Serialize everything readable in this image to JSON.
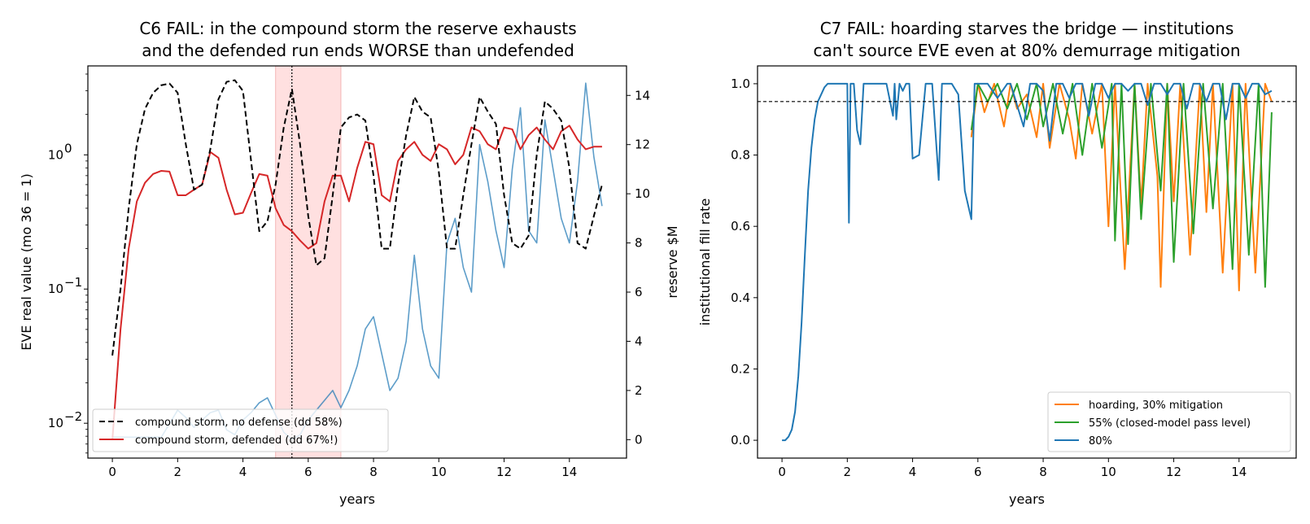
{
  "chart_data": [
    {
      "type": "line",
      "title_line1": "C6 FAIL: in the compound storm the reserve exhausts",
      "title_line2": "and the defended run ends WORSE than undefended",
      "xlabel": "years",
      "ylabel": "EVE real value (mo 36 = 1)",
      "y2label": "reserve $M",
      "y2label_color": "#1f77b4",
      "yscale": "log",
      "xlim": [
        -0.75,
        15.75
      ],
      "ylim": [
        0.0055,
        4.6
      ],
      "y2lim": [
        -0.75,
        15.2
      ],
      "x_ticks": [
        "0",
        "2",
        "4",
        "6",
        "8",
        "10",
        "12",
        "14"
      ],
      "y_ticks": [
        "10^-2",
        "10^-1",
        "10^0"
      ],
      "y2_ticks": [
        "0",
        "2",
        "4",
        "6",
        "8",
        "10",
        "12",
        "14"
      ],
      "shaded_span": {
        "x": [
          5,
          7
        ],
        "color": "#ffe0e0"
      },
      "vertical_line": {
        "x": 5.5,
        "style": "dotted"
      },
      "legend_position": "lower-left",
      "series": [
        {
          "name": "compound storm, no defense (dd 58%)",
          "color": "#000000",
          "style": "dashed",
          "x": [
            0,
            0.25,
            0.5,
            0.75,
            1.0,
            1.25,
            1.5,
            1.75,
            2.0,
            2.25,
            2.5,
            2.75,
            3.0,
            3.25,
            3.5,
            3.75,
            4.0,
            4.25,
            4.5,
            4.75,
            5.0,
            5.25,
            5.5,
            5.75,
            6.0,
            6.25,
            6.5,
            6.75,
            7.0,
            7.25,
            7.5,
            7.75,
            8.0,
            8.25,
            8.5,
            8.75,
            9.0,
            9.25,
            9.5,
            9.75,
            10.0,
            10.25,
            10.5,
            10.75,
            11.0,
            11.25,
            11.5,
            11.75,
            12.0,
            12.25,
            12.5,
            12.75,
            13.0,
            13.25,
            13.5,
            13.75,
            14.0,
            14.25,
            14.5,
            14.75,
            15.0
          ],
          "y": [
            0.032,
            0.1,
            0.4,
            1.2,
            2.2,
            2.9,
            3.3,
            3.4,
            2.9,
            1.2,
            0.55,
            0.6,
            1.1,
            2.6,
            3.5,
            3.6,
            3.0,
            0.9,
            0.27,
            0.32,
            0.6,
            1.6,
            3.1,
            1.2,
            0.35,
            0.15,
            0.17,
            0.5,
            1.6,
            1.9,
            2.0,
            1.8,
            0.7,
            0.2,
            0.2,
            0.6,
            1.4,
            2.7,
            2.1,
            1.9,
            0.75,
            0.2,
            0.2,
            0.5,
            1.2,
            2.7,
            2.1,
            1.7,
            0.5,
            0.22,
            0.2,
            0.25,
            1.0,
            2.5,
            2.2,
            1.8,
            0.8,
            0.22,
            0.2,
            0.35,
            0.6
          ]
        },
        {
          "name": "compound storm, defended (dd 67%!)",
          "color": "#d62728",
          "style": "solid",
          "x": [
            0,
            0.25,
            0.5,
            0.75,
            1.0,
            1.25,
            1.5,
            1.75,
            2.0,
            2.25,
            2.5,
            2.75,
            3.0,
            3.25,
            3.5,
            3.75,
            4.0,
            4.25,
            4.5,
            4.75,
            5.0,
            5.25,
            5.5,
            5.75,
            6.0,
            6.25,
            6.5,
            6.75,
            7.0,
            7.25,
            7.5,
            7.75,
            8.0,
            8.25,
            8.5,
            8.75,
            9.0,
            9.25,
            9.5,
            9.75,
            10.0,
            10.25,
            10.5,
            10.75,
            11.0,
            11.25,
            11.5,
            11.75,
            12.0,
            12.25,
            12.5,
            12.75,
            13.0,
            13.25,
            13.5,
            13.75,
            14.0,
            14.25,
            14.5,
            14.75,
            15.0
          ],
          "y": [
            0.0075,
            0.05,
            0.2,
            0.45,
            0.62,
            0.72,
            0.76,
            0.75,
            0.5,
            0.5,
            0.55,
            0.6,
            1.05,
            0.95,
            0.55,
            0.36,
            0.37,
            0.52,
            0.72,
            0.7,
            0.4,
            0.3,
            0.27,
            0.23,
            0.2,
            0.22,
            0.45,
            0.7,
            0.7,
            0.45,
            0.8,
            1.25,
            1.2,
            0.5,
            0.45,
            0.9,
            1.1,
            1.25,
            1.0,
            0.9,
            1.2,
            1.1,
            0.85,
            1.0,
            1.6,
            1.5,
            1.2,
            1.1,
            1.6,
            1.55,
            1.1,
            1.4,
            1.6,
            1.3,
            1.1,
            1.5,
            1.65,
            1.3,
            1.1,
            1.15,
            1.15
          ]
        },
        {
          "name": "reserve",
          "axis": "right",
          "color": "#1f77b4",
          "style": "solid",
          "x": [
            0,
            0.5,
            1.0,
            1.5,
            2.0,
            2.25,
            2.5,
            2.75,
            3.0,
            3.25,
            3.5,
            3.75,
            4.0,
            4.25,
            4.5,
            4.75,
            5.0,
            5.25,
            5.5,
            5.75,
            6.0,
            6.25,
            6.5,
            6.75,
            7.0,
            7.25,
            7.5,
            7.75,
            8.0,
            8.25,
            8.5,
            8.75,
            9.0,
            9.25,
            9.5,
            9.75,
            10.0,
            10.25,
            10.5,
            10.75,
            11.0,
            11.25,
            11.5,
            11.75,
            12.0,
            12.25,
            12.5,
            12.75,
            13.0,
            13.25,
            13.5,
            13.75,
            14.0,
            14.25,
            14.5,
            14.75,
            15.0
          ],
          "y": [
            0.1,
            0.1,
            0.1,
            0.1,
            1.2,
            0.9,
            0.5,
            0.8,
            1.1,
            1.2,
            0.4,
            0.2,
            0.8,
            1.1,
            1.5,
            1.7,
            1.0,
            0.3,
            0.0,
            0.2,
            0.8,
            1.2,
            1.6,
            2.0,
            1.3,
            2.0,
            3.0,
            4.5,
            5.0,
            3.5,
            2.0,
            2.5,
            4.0,
            7.5,
            4.5,
            3.0,
            2.5,
            8.0,
            9.0,
            7.0,
            6.0,
            12.0,
            10.5,
            8.5,
            7.0,
            11.0,
            13.5,
            8.5,
            8.0,
            13.0,
            11.0,
            9.0,
            8.0,
            10.5,
            14.5,
            11.5,
            9.5
          ]
        }
      ]
    },
    {
      "type": "line",
      "title_line1": "C7 FAIL: hoarding starves the bridge — institutions",
      "title_line2": "can't source EVE even at 80% demurrage mitigation",
      "xlabel": "years",
      "ylabel": "institutional fill rate",
      "xlim": [
        -0.75,
        15.75
      ],
      "ylim": [
        -0.05,
        1.05
      ],
      "x_ticks": [
        "0",
        "2",
        "4",
        "6",
        "8",
        "10",
        "12",
        "14"
      ],
      "y_ticks": [
        "0.0",
        "0.2",
        "0.4",
        "0.6",
        "0.8",
        "1.0"
      ],
      "reference_line": {
        "y": 0.95,
        "style": "dashed"
      },
      "legend_position": "lower-right",
      "series": [
        {
          "name": "hoarding, 30% mitigation",
          "color": "#ff7f0e",
          "style": "solid",
          "x": [
            5.8,
            6.0,
            6.2,
            6.5,
            6.8,
            7.0,
            7.2,
            7.5,
            7.8,
            8.0,
            8.2,
            8.5,
            8.8,
            9.0,
            9.2,
            9.5,
            9.8,
            10.0,
            10.2,
            10.5,
            10.8,
            11.0,
            11.2,
            11.5,
            11.6,
            11.8,
            12.0,
            12.2,
            12.5,
            12.8,
            13.0,
            13.2,
            13.5,
            13.8,
            14.0,
            14.2,
            14.5,
            14.8,
            15.0
          ],
          "y": [
            0.85,
            1.0,
            0.92,
            1.0,
            0.88,
            1.0,
            0.93,
            0.97,
            0.85,
            1.0,
            0.82,
            1.0,
            0.9,
            0.79,
            1.0,
            0.86,
            1.0,
            0.6,
            1.0,
            0.48,
            1.0,
            0.66,
            1.0,
            0.74,
            0.43,
            1.0,
            0.67,
            1.0,
            0.52,
            1.0,
            0.64,
            1.0,
            0.47,
            1.0,
            0.42,
            1.0,
            0.47,
            1.0,
            0.95
          ]
        },
        {
          "name": "55% (closed-model pass level)",
          "color": "#2ca02c",
          "style": "solid",
          "x": [
            5.8,
            6.0,
            6.3,
            6.6,
            6.9,
            7.2,
            7.5,
            7.8,
            8.0,
            8.3,
            8.6,
            8.9,
            9.2,
            9.5,
            9.8,
            10.1,
            10.2,
            10.4,
            10.6,
            10.8,
            11.0,
            11.3,
            11.6,
            11.8,
            12.0,
            12.3,
            12.6,
            12.9,
            13.2,
            13.5,
            13.8,
            14.0,
            14.3,
            14.6,
            14.8,
            15.0
          ],
          "y": [
            0.87,
            1.0,
            0.95,
            1.0,
            0.93,
            1.0,
            0.9,
            1.0,
            0.88,
            1.0,
            0.86,
            1.0,
            0.8,
            1.0,
            0.82,
            1.0,
            0.56,
            1.0,
            0.55,
            1.0,
            0.62,
            1.0,
            0.7,
            1.0,
            0.5,
            1.0,
            0.58,
            1.0,
            0.65,
            1.0,
            0.48,
            1.0,
            0.52,
            1.0,
            0.43,
            0.92
          ]
        },
        {
          "name": "80%",
          "color": "#1f77b4",
          "style": "solid",
          "x": [
            0,
            0.1,
            0.2,
            0.3,
            0.4,
            0.5,
            0.6,
            0.7,
            0.8,
            0.9,
            1.0,
            1.1,
            1.2,
            1.3,
            1.4,
            1.5,
            1.6,
            1.8,
            2.0,
            2.05,
            2.1,
            2.2,
            2.3,
            2.4,
            2.5,
            2.6,
            2.7,
            2.8,
            3.0,
            3.2,
            3.4,
            3.45,
            3.5,
            3.6,
            3.7,
            3.8,
            3.9,
            4.0,
            4.2,
            4.4,
            4.6,
            4.8,
            4.9,
            5.0,
            5.2,
            5.4,
            5.6,
            5.8,
            5.9,
            6.0,
            6.1,
            6.3,
            6.6,
            6.9,
            7.0,
            7.1,
            7.4,
            7.6,
            7.8,
            8.0,
            8.2,
            8.4,
            8.6,
            8.8,
            9.0,
            9.2,
            9.4,
            9.6,
            9.8,
            10.0,
            10.2,
            10.4,
            10.6,
            10.8,
            11.0,
            11.2,
            11.4,
            11.6,
            11.8,
            12.0,
            12.2,
            12.4,
            12.6,
            12.8,
            13.0,
            13.2,
            13.4,
            13.6,
            13.8,
            14.0,
            14.2,
            14.4,
            14.6,
            14.8,
            15.0
          ],
          "y": [
            0.0,
            0.0,
            0.01,
            0.03,
            0.08,
            0.18,
            0.33,
            0.52,
            0.7,
            0.82,
            0.9,
            0.95,
            0.97,
            0.99,
            1.0,
            1.0,
            1.0,
            1.0,
            1.0,
            0.61,
            1.0,
            1.0,
            0.87,
            0.83,
            1.0,
            1.0,
            1.0,
            1.0,
            1.0,
            1.0,
            0.91,
            1.0,
            0.9,
            1.0,
            0.98,
            1.0,
            1.0,
            0.79,
            0.8,
            1.0,
            1.0,
            0.73,
            1.0,
            1.0,
            1.0,
            0.97,
            0.7,
            0.62,
            1.0,
            1.0,
            1.0,
            1.0,
            0.96,
            1.0,
            1.0,
            0.97,
            0.88,
            1.0,
            1.0,
            0.98,
            0.84,
            1.0,
            1.0,
            0.96,
            1.0,
            1.0,
            0.91,
            1.0,
            1.0,
            0.96,
            1.0,
            1.0,
            0.98,
            1.0,
            1.0,
            0.94,
            1.0,
            1.0,
            0.97,
            1.0,
            1.0,
            0.93,
            1.0,
            1.0,
            0.95,
            1.0,
            1.0,
            0.9,
            1.0,
            1.0,
            0.96,
            1.0,
            1.0,
            0.97,
            0.98
          ]
        }
      ]
    }
  ]
}
